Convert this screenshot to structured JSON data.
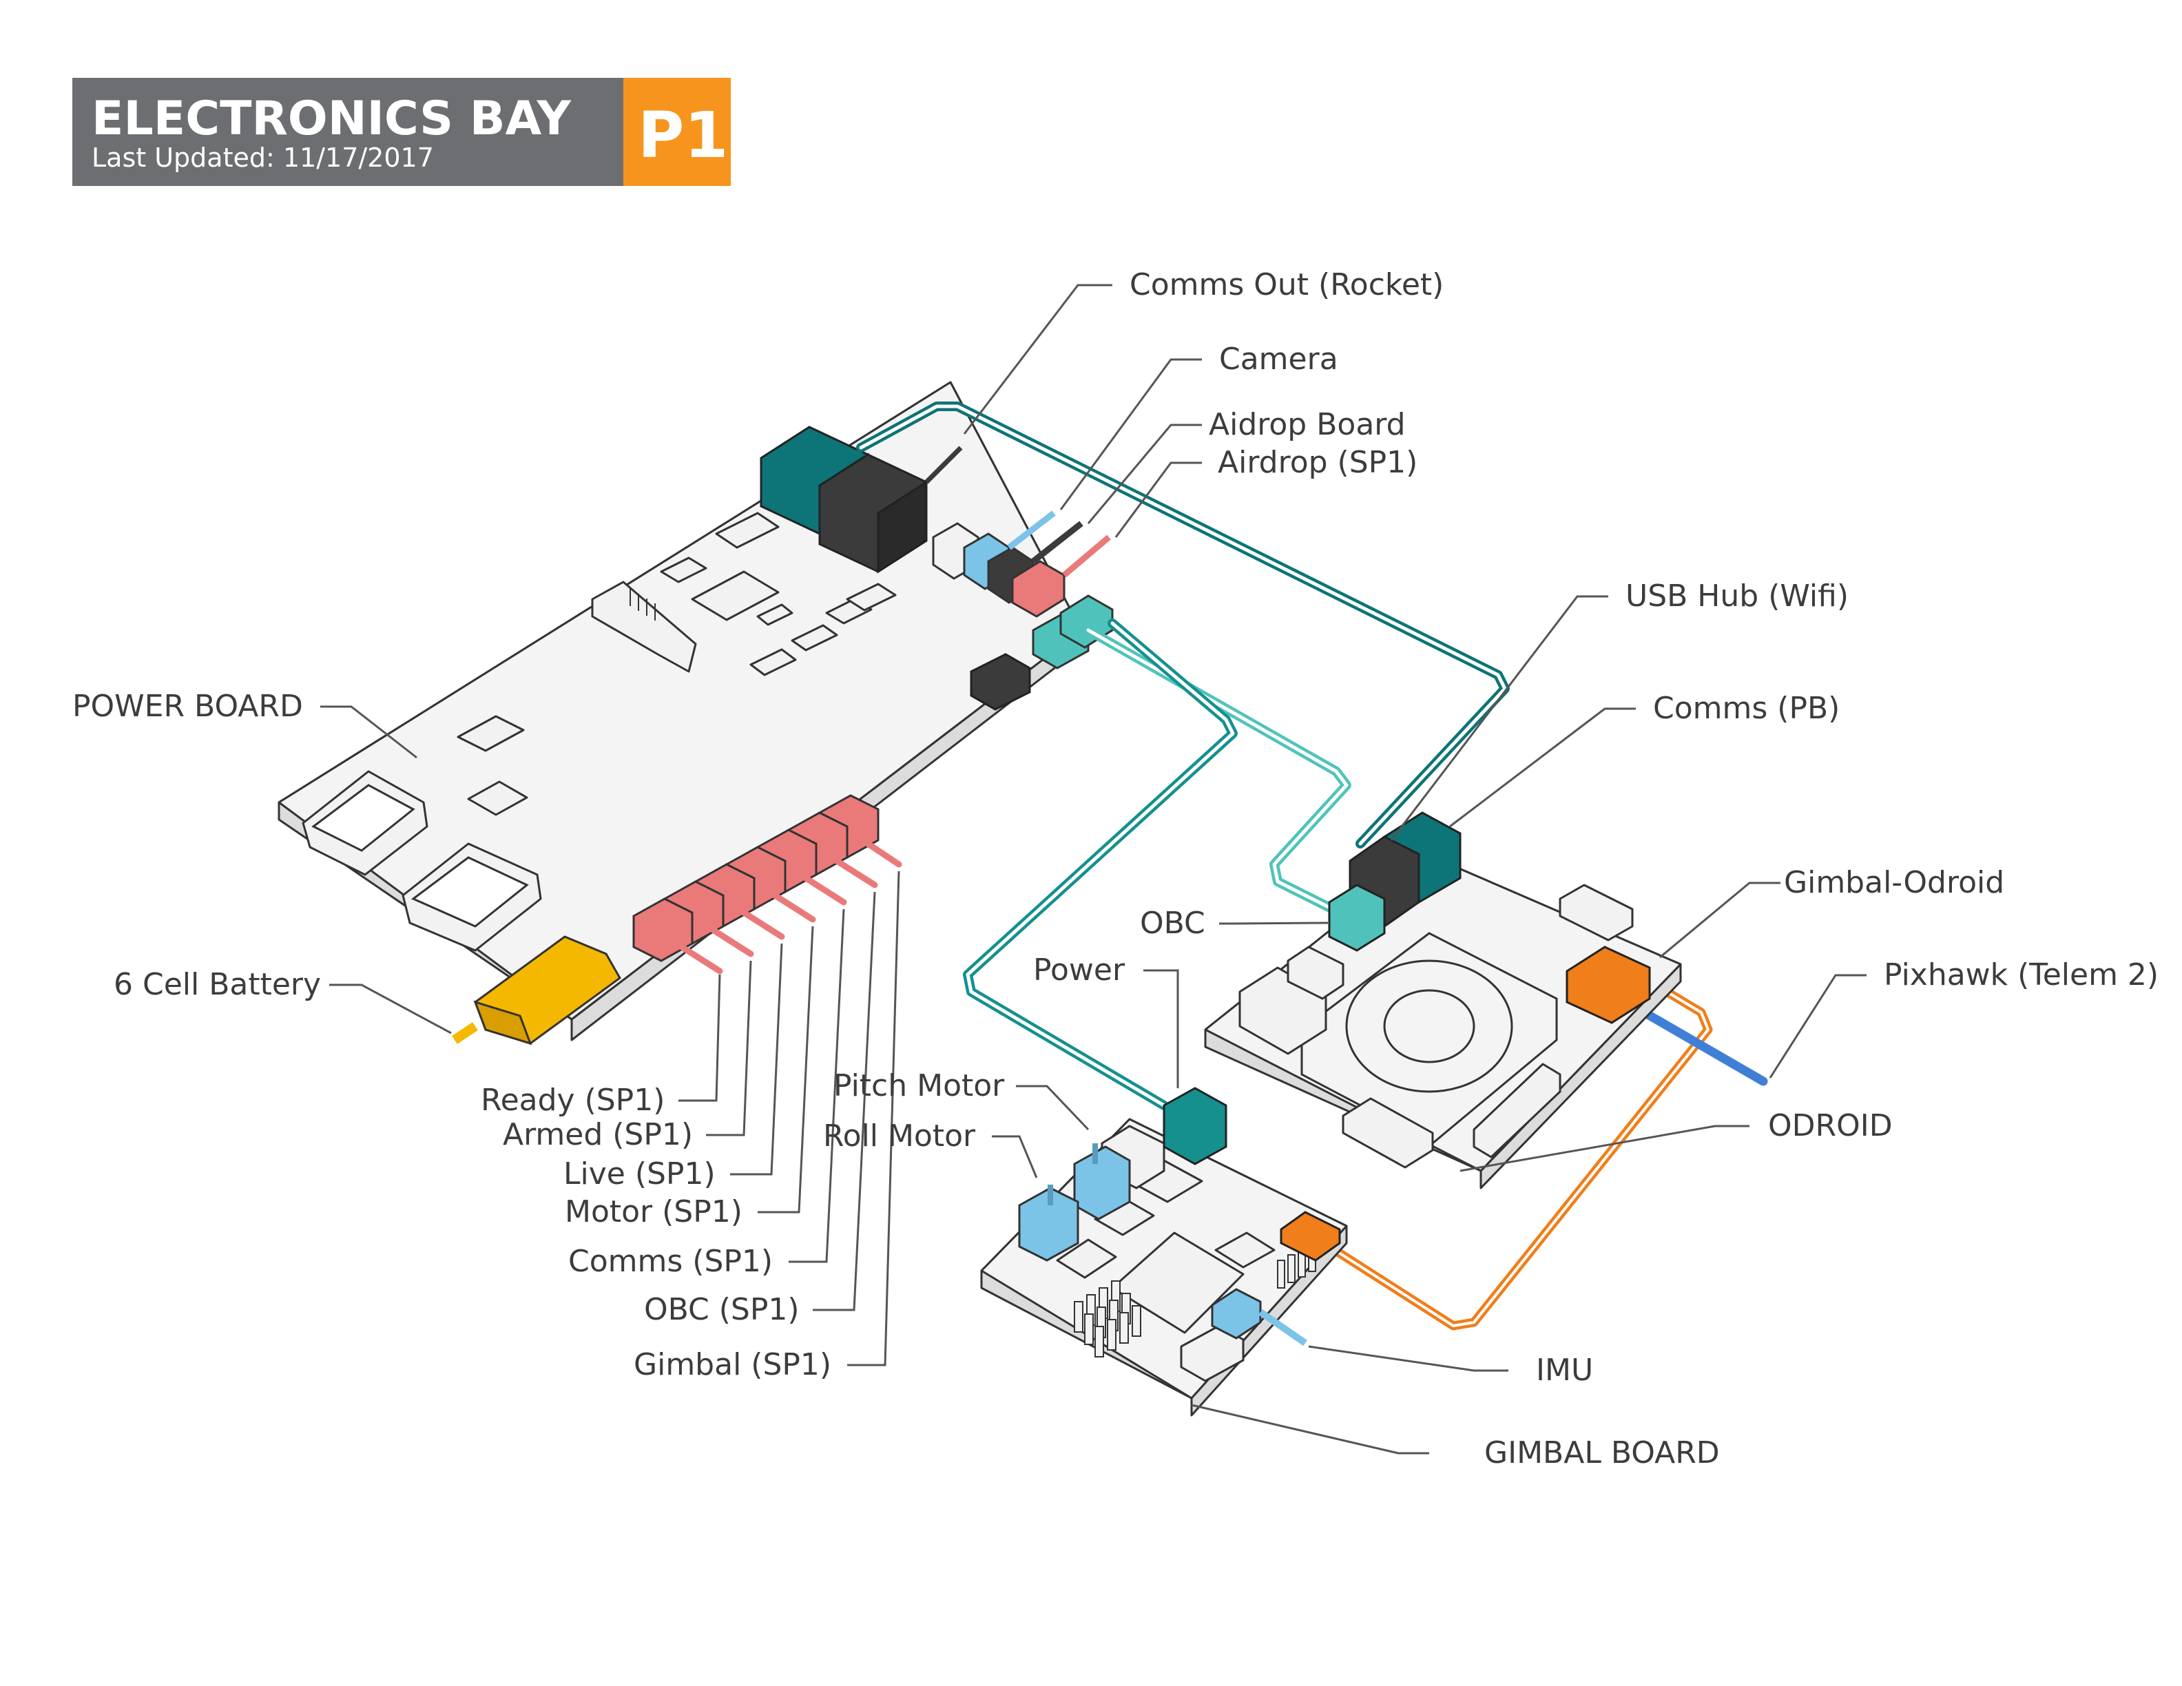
{
  "header": {
    "title": "ELECTRONICS BAY",
    "subtitle": "Last Updated: 11/17/2017",
    "badge": "P1"
  },
  "colors": {
    "banner": "#6d6e71",
    "badge": "#f7941d",
    "teal_dark": "#0d7477",
    "teal_light": "#4fc3bb",
    "charcoal": "#3b3b3b",
    "light_blue": "#7cc3e8",
    "salmon": "#ea7a7a",
    "yellow": "#f5b800",
    "orange": "#f07e1a",
    "blue_cable": "#3f7fd6"
  },
  "labels": {
    "comms_out_rocket": "Comms Out (Rocket)",
    "camera": "Camera",
    "aidrop_board": "Aidrop Board",
    "airdrop_sp1": "Airdrop (SP1)",
    "usb_hub_wifi": "USB Hub (Wifi)",
    "comms_pb": "Comms (PB)",
    "power_board": "POWER BOARD",
    "gimbal_odroid": "Gimbal-Odroid",
    "obc": "OBC",
    "pixhawk_telem2": "Pixhawk (Telem 2)",
    "power": "Power",
    "six_cell_battery": "6 Cell Battery",
    "odroid": "ODROID",
    "pitch_motor": "Pitch Motor",
    "roll_motor": "Roll Motor",
    "ready_sp1": "Ready (SP1)",
    "armed_sp1": "Armed (SP1)",
    "live_sp1": "Live (SP1)",
    "motor_sp1": "Motor (SP1)",
    "comms_sp1": "Comms (SP1)",
    "obc_sp1": "OBC (SP1)",
    "gimbal_sp1": "Gimbal (SP1)",
    "imu": "IMU",
    "gimbal_board": "GIMBAL BOARD"
  }
}
